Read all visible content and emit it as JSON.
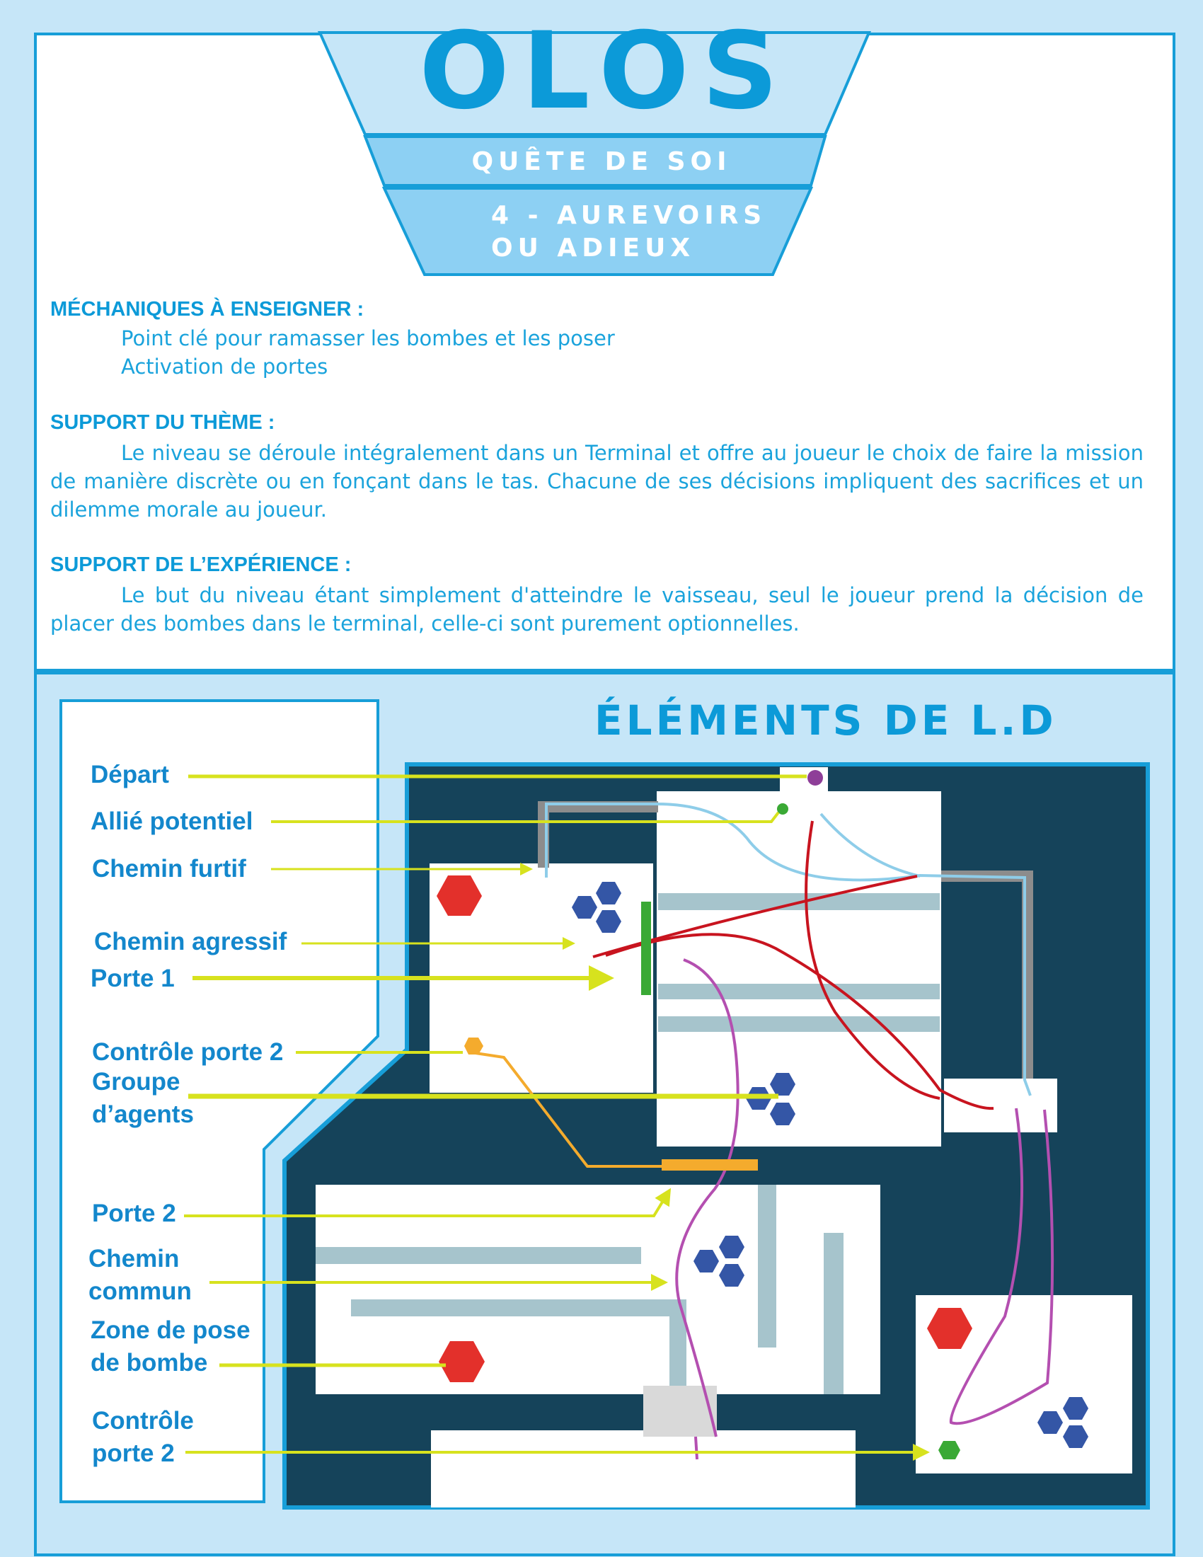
{
  "header": {
    "title": "OLOS",
    "subtitle": "QUÊTE DE SOI",
    "chapter_line1": "4 - AUREVOIRS",
    "chapter_line2": "OU ADIEUX"
  },
  "sections": {
    "mechanics": {
      "heading": "MÉCHANIQUES À ENSEIGNER :",
      "items": [
        "Point clé pour ramasser les bombes et les poser",
        "Activation de portes"
      ]
    },
    "theme": {
      "heading": "SUPPORT DU THÈME :",
      "text": "Le niveau se déroule intégralement dans un Terminal et offre au joueur le choix de faire la mission de manière discrète ou en fonçant dans le tas. Chacune de ses décisions impliquent des sacrifices et un dilemme morale au joueur."
    },
    "experience": {
      "heading": "SUPPORT DE L’EXPÉRIENCE :",
      "text": "Le but du niveau étant simplement d'atteindre le vaisseau, seul le joueur prend la décision de placer des bombes dans le terminal, celle-ci sont purement optionnelles."
    }
  },
  "legend": {
    "title": "ÉLÉMENTS DE L.D",
    "labels": {
      "depart": "Départ",
      "allie": "Allié potentiel",
      "furtif": "Chemin furtif",
      "agressif": "Chemin agressif",
      "porte1": "Porte 1",
      "controle_porte2_a": "Contrôle porte 2",
      "groupe_line1": "Groupe",
      "groupe_line2": "d’agents",
      "porte2": "Porte 2",
      "commun_line1": "Chemin",
      "commun_line2": "commun",
      "zone_line1": "Zone de pose",
      "zone_line2": "de bombe",
      "controle_b_line1": "Contrôle",
      "controle_b_line2": "porte 2"
    }
  },
  "colors": {
    "brand_blue": "#0c9ad8",
    "page_bg": "#c6e6f8",
    "map_dark": "#15435a",
    "arrow_yellow": "#d7e21e",
    "stealth_path": "#8ecde9",
    "aggressive_path": "#c8141f",
    "common_path": "#b44fb0",
    "door1": "#3aa935",
    "door2": "#f4ab2d",
    "bomb_zone": "#e3302b",
    "agents": "#3456a6",
    "start": "#8e3e98",
    "ally": "#3aa935"
  }
}
